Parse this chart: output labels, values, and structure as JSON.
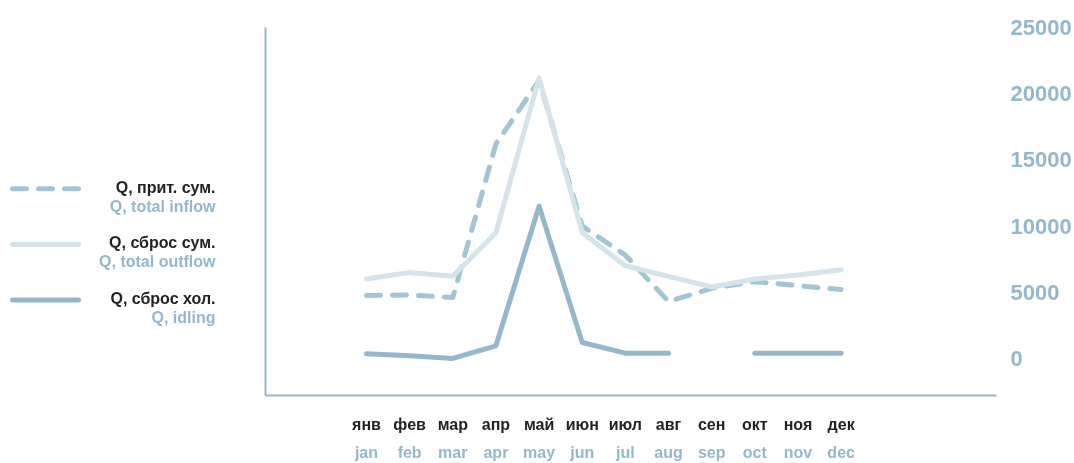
{
  "chart_data": {
    "type": "line",
    "categories": [
      "янв\njan",
      "фев\nfeb",
      "мар\nmar",
      "апр\napr",
      "май\nmay",
      "июн\njun",
      "июл\njul",
      "авг\naug",
      "сен\nsep",
      "окт\noct",
      "ноя\nnov",
      "дек\ndec"
    ],
    "series": [
      {
        "name": "Q, прит. сум.\nQ, total inflow",
        "color": "#a3c4d2",
        "line_style": "dashed",
        "values": [
          4750,
          4800,
          4600,
          16200,
          21000,
          10000,
          7800,
          4300,
          5300,
          5800,
          5500,
          5200
        ]
      },
      {
        "name": "Q, сброс сум.\nQ, total outflow",
        "color": "#d5e3ea",
        "line_style": "solid",
        "values": [
          6000,
          6500,
          6200,
          9500,
          21200,
          9500,
          7000,
          6200,
          5400,
          6000,
          6300,
          6700
        ]
      },
      {
        "name": "Q, сброс хол.\nQ, idling",
        "color": "#94b8ca",
        "line_style": "solid",
        "values": [
          350,
          200,
          0,
          950,
          11500,
          1200,
          400,
          400,
          null,
          400,
          400,
          400
        ]
      }
    ],
    "ylim": [
      -2800,
      25000
    ],
    "yticks": [
      0,
      5000,
      10000,
      15000,
      20000,
      25000
    ],
    "grid": false,
    "legend": "left"
  }
}
